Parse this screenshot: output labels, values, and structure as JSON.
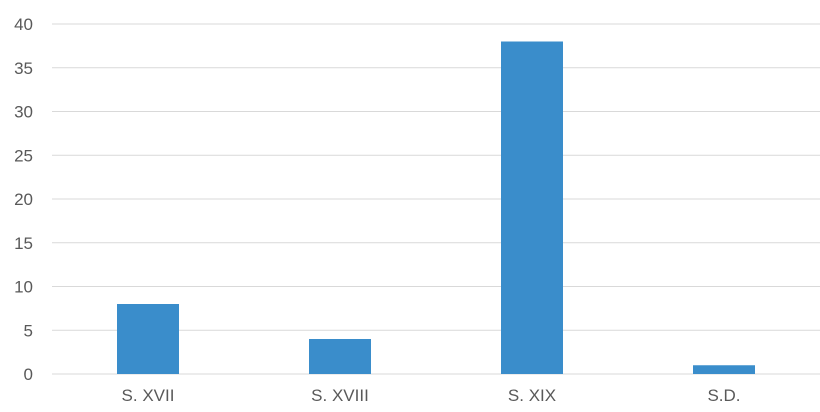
{
  "chart_data": {
    "type": "bar",
    "title": "",
    "xlabel": "",
    "ylabel": "",
    "categories": [
      "S. XVII",
      "S. XVIII",
      "S. XIX",
      "S.D."
    ],
    "values": [
      8,
      4,
      38,
      1
    ],
    "ylim": [
      0,
      40
    ],
    "yticks": [
      0,
      5,
      10,
      15,
      20,
      25,
      30,
      35,
      40
    ],
    "ytick_labels": [
      "0",
      "5",
      "10",
      "15",
      "20",
      "25",
      "30",
      "35",
      "40"
    ],
    "grid": "horizontal",
    "legend": "none",
    "colors": {
      "bar": "#3A8DCB",
      "grid": "#D9D9D9",
      "text": "#595959"
    }
  }
}
